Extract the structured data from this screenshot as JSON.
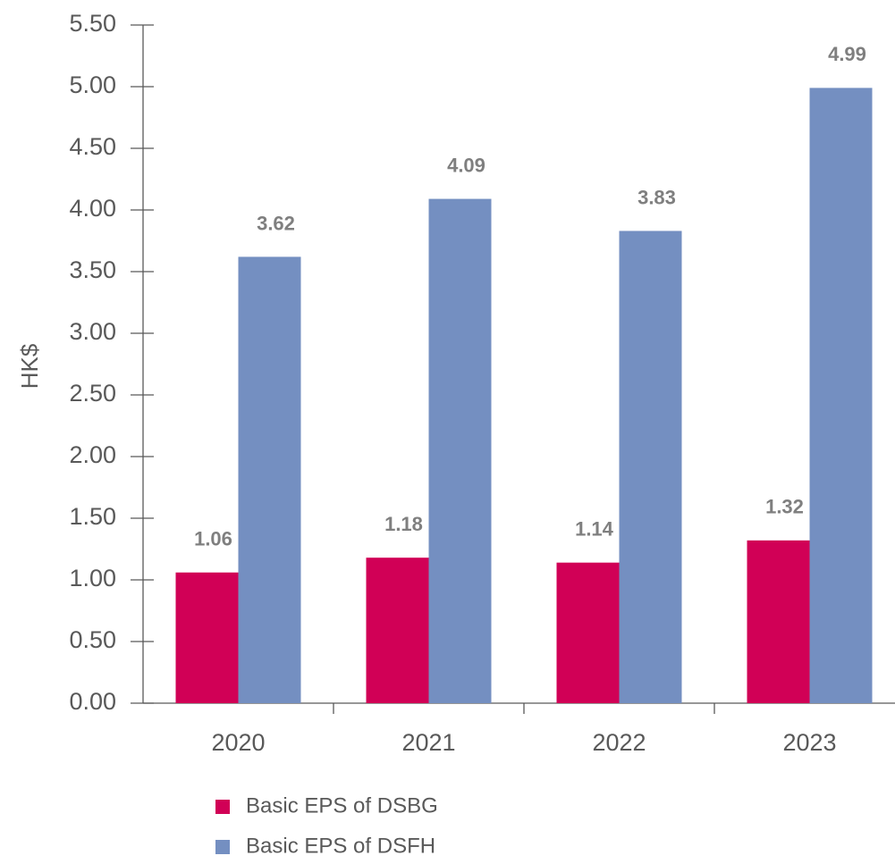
{
  "chart_data": {
    "type": "bar",
    "y_label": "HK$",
    "categories": [
      "2020",
      "2021",
      "2022",
      "2023"
    ],
    "series": [
      {
        "name": "Basic EPS of DSBG",
        "color": "#d10056",
        "values": [
          1.06,
          1.18,
          1.14,
          1.32
        ]
      },
      {
        "name": "Basic EPS of DSFH",
        "color": "#748fc1",
        "values": [
          3.62,
          4.09,
          3.83,
          4.99
        ]
      }
    ],
    "ylim": [
      0,
      5.5
    ],
    "yticks": [
      {
        "value": 0,
        "label": "0.00"
      },
      {
        "value": 0.5,
        "label": "0.50"
      },
      {
        "value": 1,
        "label": "1.00"
      },
      {
        "value": 1.5,
        "label": "1.50"
      },
      {
        "value": 2,
        "label": "2.00"
      },
      {
        "value": 2.5,
        "label": "2.50"
      },
      {
        "value": 3,
        "label": "3.00"
      },
      {
        "value": 3.5,
        "label": "3.50"
      },
      {
        "value": 4,
        "label": "4.00"
      },
      {
        "value": 4.5,
        "label": "4.50"
      },
      {
        "value": 5,
        "label": "5.00"
      },
      {
        "value": 5.5,
        "label": "5.50"
      }
    ],
    "legend": "bottom"
  }
}
